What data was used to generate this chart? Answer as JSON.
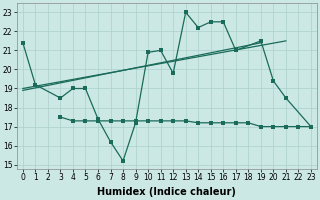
{
  "background_color": "#cce8e5",
  "grid_color": "#aad0cc",
  "line_color": "#1a6b5a",
  "xlabel": "Humidex (Indice chaleur)",
  "xlabel_fontsize": 7,
  "tick_fontsize": 5.5,
  "ylim": [
    14.8,
    23.5
  ],
  "yticks": [
    15,
    16,
    17,
    18,
    19,
    20,
    21,
    22,
    23
  ],
  "xticks": [
    0,
    1,
    2,
    3,
    4,
    5,
    6,
    7,
    8,
    9,
    10,
    11,
    12,
    13,
    14,
    15,
    16,
    17,
    18,
    19,
    20,
    21,
    22,
    23
  ],
  "line_main": {
    "x": [
      0,
      1,
      3,
      4,
      5,
      6,
      7,
      8,
      9,
      10,
      11,
      12,
      13,
      14,
      15,
      16,
      17,
      19,
      20,
      21,
      23
    ],
    "y": [
      21.4,
      19.2,
      18.5,
      19.0,
      19.0,
      17.4,
      16.2,
      15.2,
      17.2,
      20.9,
      21.0,
      19.8,
      23.0,
      22.2,
      22.5,
      22.5,
      21.0,
      21.5,
      19.4,
      18.5,
      17.0
    ]
  },
  "line_flat": {
    "x": [
      3,
      4,
      5,
      6,
      7,
      8,
      9,
      10,
      11,
      12,
      13,
      14,
      15,
      16,
      17,
      18,
      19,
      20,
      21,
      22,
      23
    ],
    "y": [
      17.5,
      17.3,
      17.3,
      17.3,
      17.3,
      17.3,
      17.3,
      17.3,
      17.3,
      17.3,
      17.3,
      17.2,
      17.2,
      17.2,
      17.2,
      17.2,
      17.0,
      17.0,
      17.0,
      17.0,
      17.0
    ]
  },
  "line_trend1": {
    "x": [
      0,
      21
    ],
    "y": [
      19.0,
      21.5
    ]
  },
  "line_trend2": {
    "x": [
      0,
      19
    ],
    "y": [
      18.9,
      21.4
    ]
  }
}
